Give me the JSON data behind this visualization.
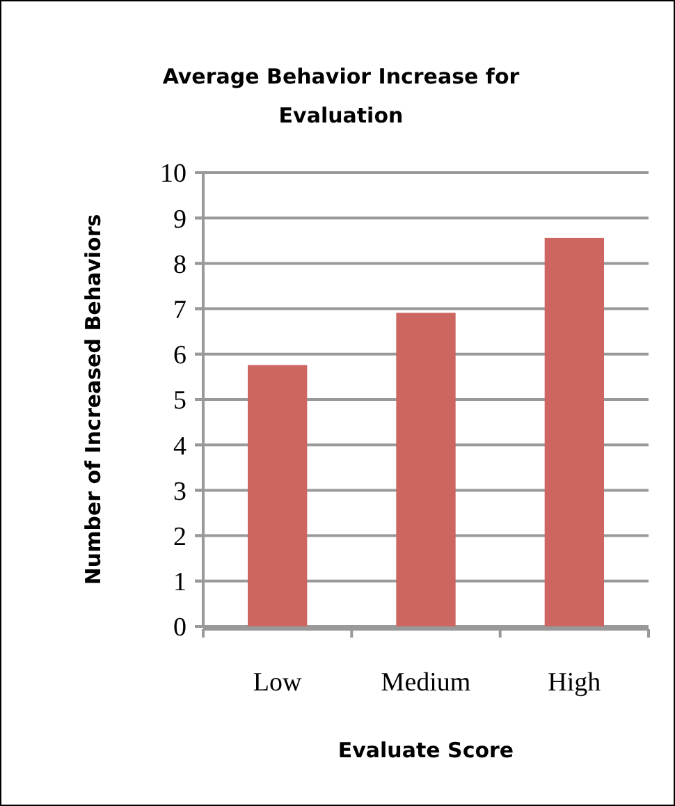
{
  "chart_data": {
    "type": "bar",
    "title": "Average Behavior Increase for Evaluation",
    "xlabel": "Evaluate Score",
    "ylabel": "Number of Increased Behaviors",
    "categories": [
      "Low",
      "Medium",
      "High"
    ],
    "values": [
      5.76,
      6.91,
      8.56
    ],
    "color": "#cd6660",
    "ylim": [
      0,
      10
    ],
    "yticks": [
      0,
      1,
      2,
      3,
      4,
      5,
      6,
      7,
      8,
      9,
      10
    ],
    "grid": "y"
  }
}
